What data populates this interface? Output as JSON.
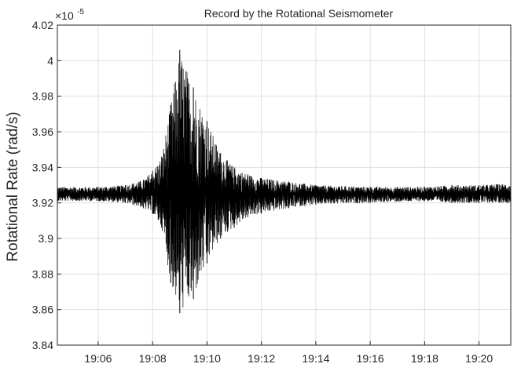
{
  "chart_data": {
    "type": "line",
    "title": "Record by the Rotational Seismometer",
    "xlabel": "",
    "ylabel": "Rotational Rate (rad/s)",
    "y_multiplier": {
      "base": "×10",
      "exponent": "-5"
    },
    "xlim": [
      "19:04:30",
      "19:21:10"
    ],
    "ylim": [
      3.84,
      4.02
    ],
    "x_ticks": [
      "19:06",
      "19:08",
      "19:10",
      "19:12",
      "19:14",
      "19:16",
      "19:18",
      "19:20"
    ],
    "y_ticks": [
      "3.84",
      "3.86",
      "3.88",
      "3.9",
      "3.92",
      "3.94",
      "3.96",
      "3.98",
      "4",
      "4.02"
    ],
    "grid": true,
    "series": [
      {
        "color": "#000000",
        "baseline": 3.925,
        "envelope": [
          {
            "t": "19:04:30",
            "up": 3.929,
            "down": 3.921
          },
          {
            "t": "19:06:00",
            "up": 3.929,
            "down": 3.921
          },
          {
            "t": "19:07:00",
            "up": 3.93,
            "down": 3.92
          },
          {
            "t": "19:07:40",
            "up": 3.933,
            "down": 3.917
          },
          {
            "t": "19:08:00",
            "up": 3.938,
            "down": 3.914
          },
          {
            "t": "19:08:20",
            "up": 3.946,
            "down": 3.906
          },
          {
            "t": "19:08:40",
            "up": 3.975,
            "down": 3.875
          },
          {
            "t": "19:09:00",
            "up": 4.006,
            "down": 3.858
          },
          {
            "t": "19:09:30",
            "up": 3.985,
            "down": 3.866
          },
          {
            "t": "19:10:00",
            "up": 3.966,
            "down": 3.886
          },
          {
            "t": "19:10:30",
            "up": 3.948,
            "down": 3.9
          },
          {
            "t": "19:11:00",
            "up": 3.94,
            "down": 3.906
          },
          {
            "t": "19:11:30",
            "up": 3.936,
            "down": 3.912
          },
          {
            "t": "19:12:00",
            "up": 3.934,
            "down": 3.914
          },
          {
            "t": "19:13:00",
            "up": 3.932,
            "down": 3.917
          },
          {
            "t": "19:14:00",
            "up": 3.93,
            "down": 3.919
          },
          {
            "t": "19:16:00",
            "up": 3.929,
            "down": 3.92
          },
          {
            "t": "19:18:00",
            "up": 3.929,
            "down": 3.921
          },
          {
            "t": "19:19:00",
            "up": 3.93,
            "down": 3.92
          },
          {
            "t": "19:20:00",
            "up": 3.93,
            "down": 3.92
          },
          {
            "t": "19:21:10",
            "up": 3.931,
            "down": 3.92
          }
        ]
      }
    ]
  }
}
